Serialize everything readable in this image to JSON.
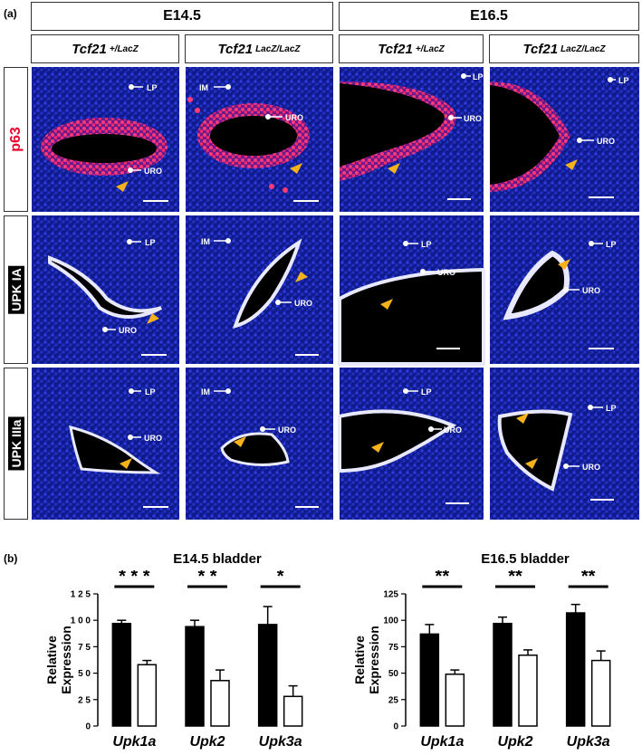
{
  "panel_a_label": "(a)",
  "panel_b_label": "(b)",
  "stages": [
    "E14.5",
    "E16.5"
  ],
  "genotypes": [
    {
      "name": "Tcf21",
      "sup": "+/LacZ"
    },
    {
      "name": "Tcf21",
      "sup": "LacZ/LacZ"
    },
    {
      "name": "Tcf21",
      "sup": "+/LacZ"
    },
    {
      "name": "Tcf21",
      "sup": "LacZ/LacZ"
    }
  ],
  "markers": [
    "p63",
    "UPK IA",
    "UPK IIIa"
  ],
  "colors": {
    "nuclei": "#1a2ad6",
    "p63": "#ff2a6a",
    "upk": "#e8e8ff",
    "arrow": "#f5b21a",
    "lumen": "#000000",
    "p63_label": "#e8002a"
  },
  "micro_labels": {
    "lp": "LP",
    "uro": "URO",
    "im": "IM"
  },
  "chart_data": [
    {
      "type": "bar",
      "title": "E14.5 bladder",
      "ylabel": "Relative Expression",
      "ylim": [
        0,
        125
      ],
      "yticks": [
        "0",
        "2 5",
        "5 0",
        "7 5",
        "1 0 0",
        "1 2 5"
      ],
      "yticks_values": [
        0,
        25,
        50,
        75,
        100,
        125
      ],
      "categories": [
        "Upk1a",
        "Upk2",
        "Upk3a"
      ],
      "series": [
        {
          "fill": "#000000",
          "values": [
            97,
            94,
            96
          ],
          "errors": [
            3,
            6,
            17
          ]
        },
        {
          "fill": "#ffffff",
          "values": [
            58,
            43,
            28
          ],
          "errors": [
            4,
            10,
            10
          ]
        }
      ],
      "significance": [
        "* * *",
        "* *",
        "*"
      ]
    },
    {
      "type": "bar",
      "title": "E16.5 bladder",
      "ylabel": "Relative Expression",
      "ylim": [
        0,
        125
      ],
      "yticks": [
        "0",
        "25",
        "50",
        "75",
        "100",
        "125"
      ],
      "yticks_values": [
        0,
        25,
        50,
        75,
        100,
        125
      ],
      "categories": [
        "Upk1a",
        "Upk2",
        "Upk3a"
      ],
      "series": [
        {
          "fill": "#000000",
          "values": [
            87,
            97,
            107
          ],
          "errors": [
            9,
            6,
            8
          ]
        },
        {
          "fill": "#ffffff",
          "values": [
            49,
            67,
            62
          ],
          "errors": [
            4,
            5,
            9
          ]
        }
      ],
      "significance": [
        "**",
        "**",
        "**"
      ]
    }
  ]
}
